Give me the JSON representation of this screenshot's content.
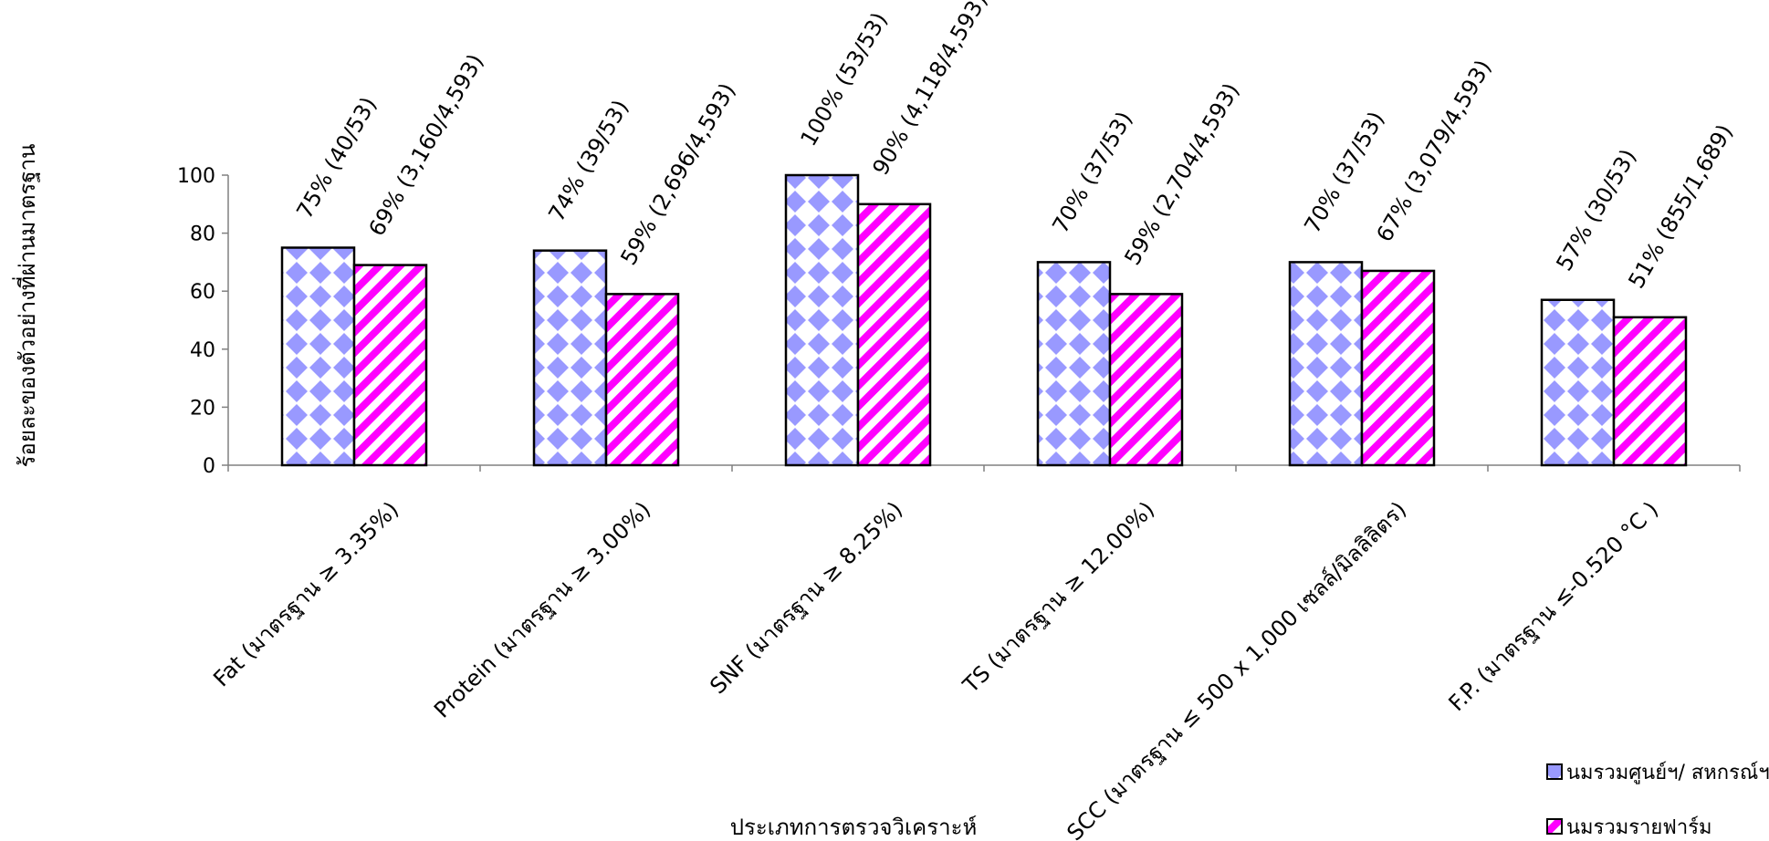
{
  "chart_data": {
    "type": "bar",
    "xlabel": "ประเภทการตรวจวิเคราะห์",
    "ylabel": "ร้อยละของตัวอย่างที่ผ่านมาตรฐาน",
    "ylim": [
      0,
      100
    ],
    "yticks": [
      "0",
      "20",
      "40",
      "60",
      "80",
      "100"
    ],
    "categories": [
      "Fat (มาตรฐาน ≥ 3.35%)",
      "Protein (มาตรฐาน ≥ 3.00%)",
      "SNF (มาตรฐาน ≥ 8.25%)",
      "TS (มาตรฐาน ≥ 12.00%)",
      "SCC (มาตรฐาน ≤ 500 x 1,000 เซลล์/มิลลิลิตร)",
      "F.P. (มาตรฐาน ≤-0.520 °C )"
    ],
    "series": [
      {
        "name": "นมรวมศูนย์ฯ/ สหกรณ์ฯ",
        "values": [
          75,
          74,
          100,
          70,
          70,
          57
        ],
        "labels": [
          "75% (40/53)",
          "74% (39/53)",
          "100% (53/53)",
          "70% (37/53)",
          "70% (37/53)",
          "57% (30/53)"
        ]
      },
      {
        "name": "นมรวมรายฟาร์ม",
        "values": [
          69,
          59,
          90,
          59,
          67,
          51
        ],
        "labels": [
          "69% (3,160/4,593)",
          "59% (2,696/4,593)",
          "90% (4,118/4,593)",
          "59% (2,704/4,593)",
          "67% (3,079/4,593)",
          "51% (855/1,689)"
        ]
      }
    ],
    "grid": false,
    "legend_position": "bottom-right",
    "colors": {
      "series1_fill": "#9999ff",
      "series1_bg": "#ffffff",
      "series2_fill": "#ff00ff",
      "series2_bg": "#ffffff",
      "axis": "#808080",
      "bar_edge": "#000000"
    }
  }
}
